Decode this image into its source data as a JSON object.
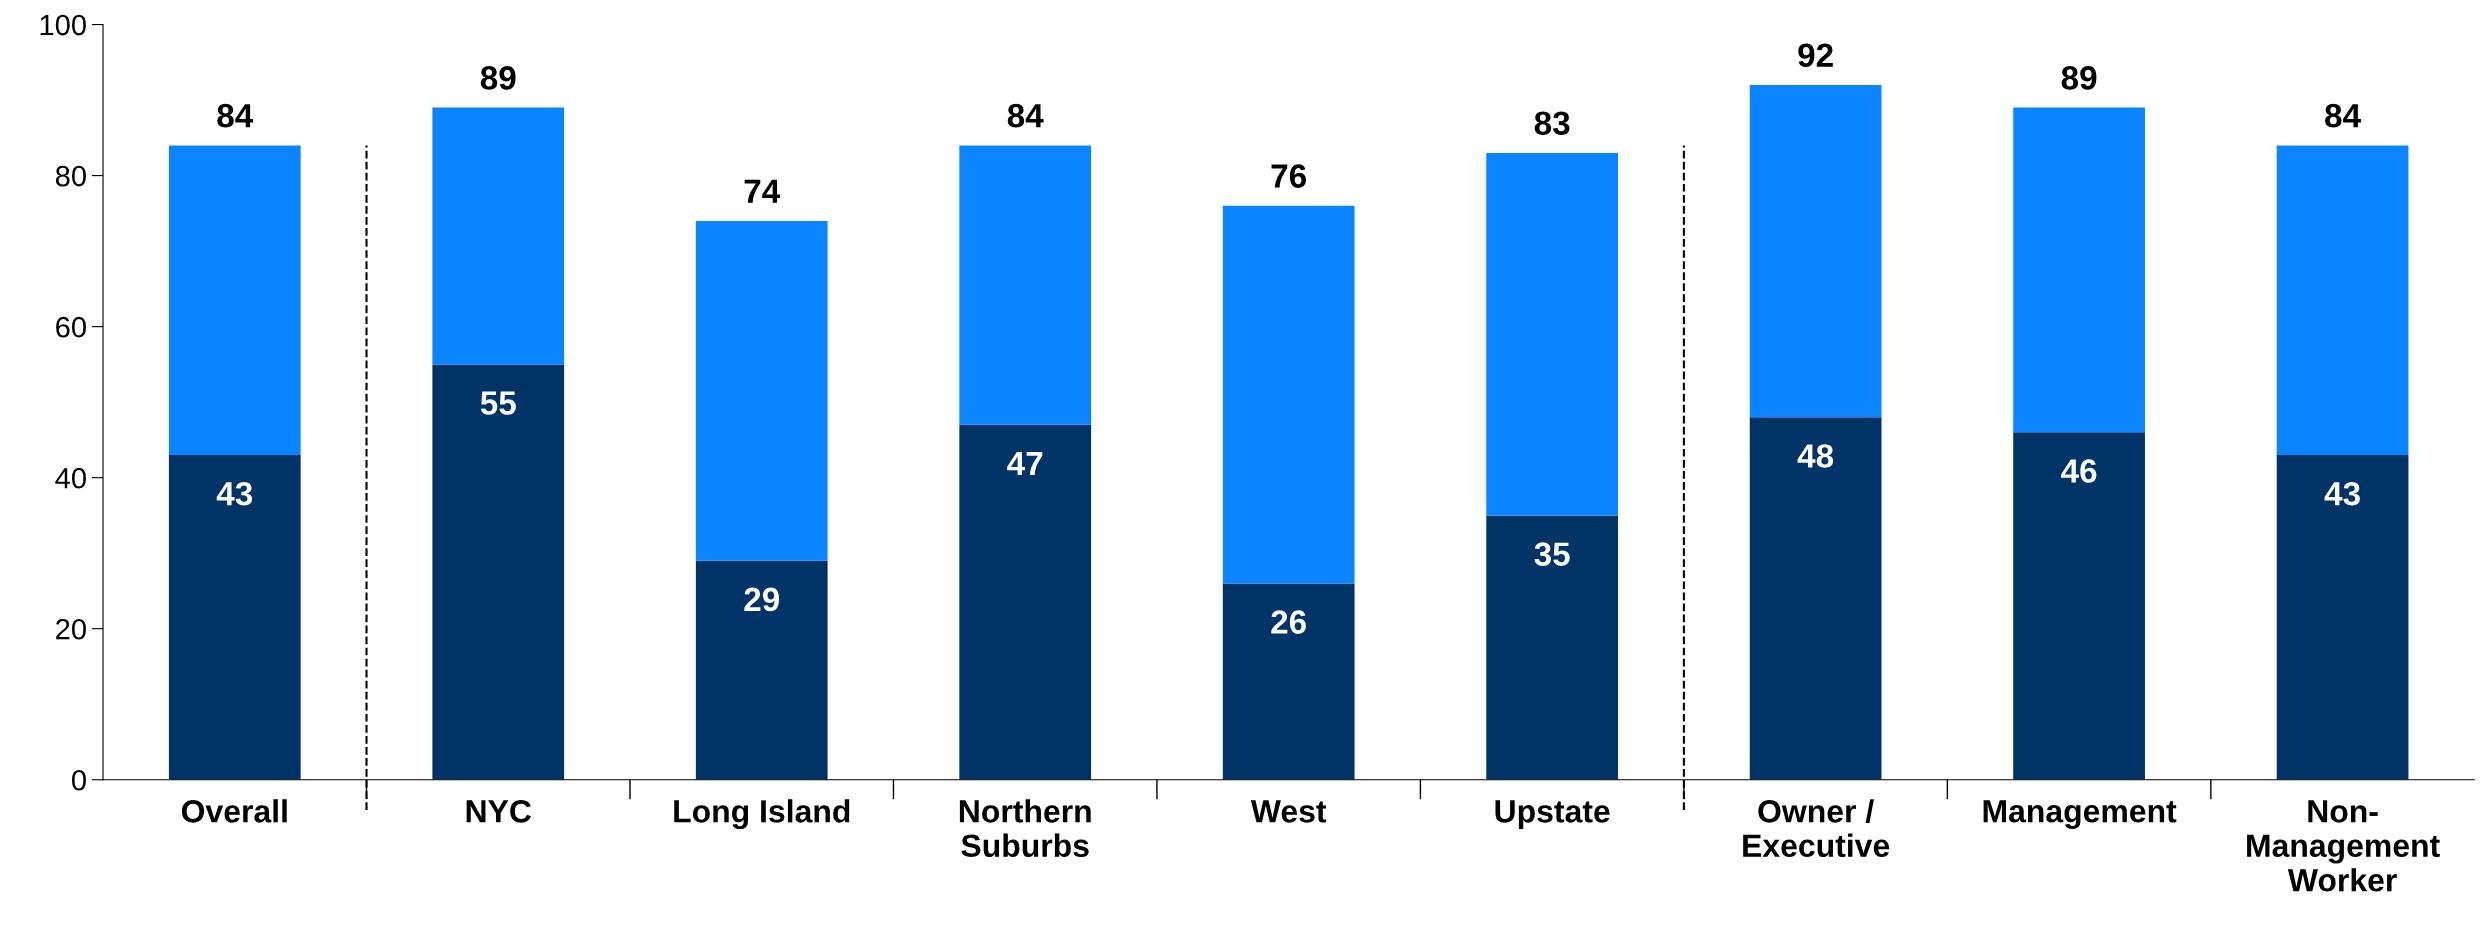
{
  "chart_data": {
    "type": "bar",
    "stacked": true,
    "categories": [
      "Overall",
      "NYC",
      "Long Island",
      "Northern\nSuburbs",
      "West",
      "Upstate",
      "Owner /\nExecutive",
      "Management",
      "Non-\nManagement\nWorker"
    ],
    "series": [
      {
        "color": "#003366",
        "values": [
          43,
          55,
          29,
          47,
          26,
          35,
          48,
          46,
          43
        ],
        "value_labels": [
          "43",
          "55",
          "29",
          "47",
          "26",
          "35",
          "48",
          "46",
          "43"
        ]
      },
      {
        "color": "#0a85ff",
        "values": [
          41,
          34,
          45,
          37,
          50,
          48,
          44,
          43,
          41
        ]
      }
    ],
    "totals": [
      "84",
      "89",
      "74",
      "84",
      "76",
      "83",
      "92",
      "89",
      "84"
    ],
    "ylim": [
      0,
      100
    ],
    "yticks": [
      0,
      20,
      40,
      60,
      80,
      100
    ],
    "grid": false,
    "legend": false
  }
}
